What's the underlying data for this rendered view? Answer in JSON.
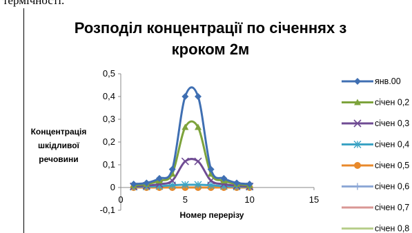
{
  "header_fragment": "термічності.",
  "chart_data": {
    "type": "scatter",
    "title_line1": "Розподіл концентрації по січеннях з",
    "title_line2": "кроком 2м",
    "xlabel": "Номер перерізу",
    "ylabel": [
      "Концентрація",
      "шкідливої",
      "речовини"
    ],
    "xlim": [
      0,
      15
    ],
    "ylim": [
      -0.1,
      0.5
    ],
    "x_ticks": [
      "0",
      "5",
      "10",
      "15"
    ],
    "y_ticks": [
      "-0,1",
      "0",
      "0,1",
      "0,2",
      "0,3",
      "0,4",
      "0,5"
    ],
    "legend_position": "right",
    "series": [
      {
        "name": "янв.00",
        "color": "#3f6fb2",
        "marker": "diamond",
        "x": [
          1,
          2,
          3,
          4,
          5,
          6,
          7,
          8,
          9,
          10
        ],
        "y": [
          0.015,
          0.02,
          0.04,
          0.08,
          0.4,
          0.4,
          0.08,
          0.04,
          0.02,
          0.015
        ]
      },
      {
        "name": "січен 0,2",
        "color": "#7da33c",
        "marker": "triangle",
        "x": [
          1,
          2,
          3,
          4,
          5,
          6,
          7,
          8,
          9,
          10
        ],
        "y": [
          0.01,
          0.015,
          0.03,
          0.06,
          0.265,
          0.265,
          0.06,
          0.03,
          0.015,
          0.01
        ]
      },
      {
        "name": "січен 0,3",
        "color": "#6f4b93",
        "marker": "x",
        "x": [
          1,
          2,
          3,
          4,
          5,
          6,
          7,
          8,
          9,
          10
        ],
        "y": [
          0.005,
          0.008,
          0.015,
          0.03,
          0.115,
          0.115,
          0.03,
          0.015,
          0.008,
          0.005
        ]
      },
      {
        "name": "січен 0,4",
        "color": "#3ba3c4",
        "marker": "star",
        "x": [
          1,
          2,
          3,
          4,
          5,
          6,
          7,
          8,
          9,
          10
        ],
        "y": [
          0.003,
          0.004,
          0.006,
          0.01,
          0.012,
          0.012,
          0.01,
          0.006,
          0.004,
          0.003
        ]
      },
      {
        "name": "січен 0,5",
        "color": "#e8892b",
        "marker": "circle",
        "x": [
          1,
          2,
          3,
          4,
          5,
          6,
          7,
          8,
          9,
          10
        ],
        "y": [
          0,
          0,
          0,
          0,
          0,
          0,
          0,
          0,
          0,
          0
        ]
      },
      {
        "name": "січен 0,6",
        "color": "#8ea9d6",
        "marker": "plus",
        "x": [
          1,
          2,
          3,
          4,
          5,
          6,
          7,
          8,
          9,
          10
        ],
        "y": [
          0,
          0,
          0,
          0,
          0,
          0,
          0,
          0,
          0,
          0
        ]
      },
      {
        "name": "січен 0,7",
        "color": "#d99794",
        "marker": "none",
        "x": [
          1,
          2,
          3,
          4,
          5,
          6,
          7,
          8,
          9,
          10
        ],
        "y": [
          0,
          0,
          0,
          0,
          0,
          0,
          0,
          0,
          0,
          0
        ]
      },
      {
        "name": "січен 0,8",
        "color": "#b8cf8c",
        "marker": "none",
        "x": [
          1,
          2,
          3,
          4,
          5,
          6,
          7,
          8,
          9,
          10
        ],
        "y": [
          0,
          0,
          0,
          0,
          0,
          0,
          0,
          0,
          0,
          0
        ]
      }
    ]
  }
}
